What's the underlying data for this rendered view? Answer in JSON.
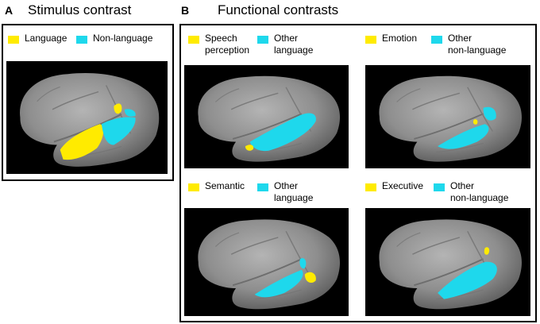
{
  "panel_a": {
    "letter": "A",
    "title": "Stimulus contrast",
    "legend": [
      {
        "label": "Language",
        "color": "#ffeb00"
      },
      {
        "label": "Non-language",
        "color": "#1ed8ec"
      }
    ]
  },
  "panel_b": {
    "letter": "B",
    "title": "Functional contrasts",
    "subpanels": [
      {
        "legend": [
          {
            "label": "Speech\nperception",
            "color": "#ffeb00"
          },
          {
            "label": "Other\nlanguage",
            "color": "#1ed8ec"
          }
        ]
      },
      {
        "legend": [
          {
            "label": "Emotion",
            "color": "#ffeb00"
          },
          {
            "label": "Other\nnon-language",
            "color": "#1ed8ec"
          }
        ]
      },
      {
        "legend": [
          {
            "label": "Semantic",
            "color": "#ffeb00"
          },
          {
            "label": "Other\nlanguage",
            "color": "#1ed8ec"
          }
        ]
      },
      {
        "legend": [
          {
            "label": "Executive",
            "color": "#ffeb00"
          },
          {
            "label": "Other\nnon-language",
            "color": "#1ed8ec"
          }
        ]
      }
    ]
  },
  "colors": {
    "language": "#ffeb00",
    "non_language": "#1ed8ec",
    "brain": "#8c8c8c",
    "background": "#000000"
  }
}
